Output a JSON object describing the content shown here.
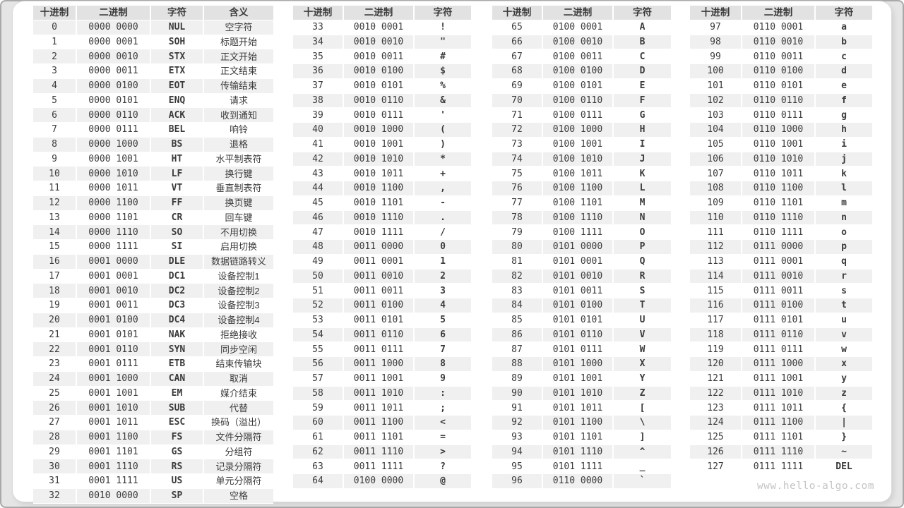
{
  "watermark": "www.hello-algo.com",
  "colors": {
    "page_bg": "#e5e5e5",
    "card_bg": "#ffffff",
    "header_bg": "#e2e2e2",
    "stripe_bg": "#f0f0f0",
    "text": "#3b3b3b",
    "watermark": "#c4c4c4"
  },
  "tables": [
    {
      "name": "ascii-control-characters",
      "headers": [
        "十进制",
        "二进制",
        "字符",
        "含义"
      ],
      "rows": [
        [
          "0",
          "0000 0000",
          "NUL",
          "空字符"
        ],
        [
          "1",
          "0000 0001",
          "SOH",
          "标题开始"
        ],
        [
          "2",
          "0000 0010",
          "STX",
          "正文开始"
        ],
        [
          "3",
          "0000 0011",
          "ETX",
          "正文结束"
        ],
        [
          "4",
          "0000 0100",
          "EOT",
          "传输结束"
        ],
        [
          "5",
          "0000 0101",
          "ENQ",
          "请求"
        ],
        [
          "6",
          "0000 0110",
          "ACK",
          "收到通知"
        ],
        [
          "7",
          "0000 0111",
          "BEL",
          "响铃"
        ],
        [
          "8",
          "0000 1000",
          "BS",
          "退格"
        ],
        [
          "9",
          "0000 1001",
          "HT",
          "水平制表符"
        ],
        [
          "10",
          "0000 1010",
          "LF",
          "换行键"
        ],
        [
          "11",
          "0000 1011",
          "VT",
          "垂直制表符"
        ],
        [
          "12",
          "0000 1100",
          "FF",
          "换页键"
        ],
        [
          "13",
          "0000 1101",
          "CR",
          "回车键"
        ],
        [
          "14",
          "0000 1110",
          "SO",
          "不用切换"
        ],
        [
          "15",
          "0000 1111",
          "SI",
          "启用切换"
        ],
        [
          "16",
          "0001 0000",
          "DLE",
          "数据链路转义"
        ],
        [
          "17",
          "0001 0001",
          "DC1",
          "设备控制1"
        ],
        [
          "18",
          "0001 0010",
          "DC2",
          "设备控制2"
        ],
        [
          "19",
          "0001 0011",
          "DC3",
          "设备控制3"
        ],
        [
          "20",
          "0001 0100",
          "DC4",
          "设备控制4"
        ],
        [
          "21",
          "0001 0101",
          "NAK",
          "拒绝接收"
        ],
        [
          "22",
          "0001 0110",
          "SYN",
          "同步空闲"
        ],
        [
          "23",
          "0001 0111",
          "ETB",
          "结束传输块"
        ],
        [
          "24",
          "0001 1000",
          "CAN",
          "取消"
        ],
        [
          "25",
          "0001 1001",
          "EM",
          "媒介结束"
        ],
        [
          "26",
          "0001 1010",
          "SUB",
          "代替"
        ],
        [
          "27",
          "0001 1011",
          "ESC",
          "换码（溢出）"
        ],
        [
          "28",
          "0001 1100",
          "FS",
          "文件分隔符"
        ],
        [
          "29",
          "0001 1101",
          "GS",
          "分组符"
        ],
        [
          "30",
          "0001 1110",
          "RS",
          "记录分隔符"
        ],
        [
          "31",
          "0001 1111",
          "US",
          "单元分隔符"
        ],
        [
          "32",
          "0010 0000",
          "SP",
          "空格"
        ]
      ]
    },
    {
      "name": "ascii-33-64",
      "headers": [
        "十进制",
        "二进制",
        "字符"
      ],
      "rows": [
        [
          "33",
          "0010 0001",
          "!"
        ],
        [
          "34",
          "0010 0010",
          "\""
        ],
        [
          "35",
          "0010 0011",
          "#"
        ],
        [
          "36",
          "0010 0100",
          "$"
        ],
        [
          "37",
          "0010 0101",
          "%"
        ],
        [
          "38",
          "0010 0110",
          "&"
        ],
        [
          "39",
          "0010 0111",
          "'"
        ],
        [
          "40",
          "0010 1000",
          "("
        ],
        [
          "41",
          "0010 1001",
          ")"
        ],
        [
          "42",
          "0010 1010",
          "*"
        ],
        [
          "43",
          "0010 1011",
          "+"
        ],
        [
          "44",
          "0010 1100",
          ","
        ],
        [
          "45",
          "0010 1101",
          "-"
        ],
        [
          "46",
          "0010 1110",
          "."
        ],
        [
          "47",
          "0010 1111",
          "/"
        ],
        [
          "48",
          "0011 0000",
          "0"
        ],
        [
          "49",
          "0011 0001",
          "1"
        ],
        [
          "50",
          "0011 0010",
          "2"
        ],
        [
          "51",
          "0011 0011",
          "3"
        ],
        [
          "52",
          "0011 0100",
          "4"
        ],
        [
          "53",
          "0011 0101",
          "5"
        ],
        [
          "54",
          "0011 0110",
          "6"
        ],
        [
          "55",
          "0011 0111",
          "7"
        ],
        [
          "56",
          "0011 1000",
          "8"
        ],
        [
          "57",
          "0011 1001",
          "9"
        ],
        [
          "58",
          "0011 1010",
          ":"
        ],
        [
          "59",
          "0011 1011",
          ";"
        ],
        [
          "60",
          "0011 1100",
          "<"
        ],
        [
          "61",
          "0011 1101",
          "="
        ],
        [
          "62",
          "0011 1110",
          ">"
        ],
        [
          "63",
          "0011 1111",
          "?"
        ],
        [
          "64",
          "0100 0000",
          "@"
        ]
      ]
    },
    {
      "name": "ascii-65-96",
      "headers": [
        "十进制",
        "二进制",
        "字符"
      ],
      "rows": [
        [
          "65",
          "0100 0001",
          "A"
        ],
        [
          "66",
          "0100 0010",
          "B"
        ],
        [
          "67",
          "0100 0011",
          "C"
        ],
        [
          "68",
          "0100 0100",
          "D"
        ],
        [
          "69",
          "0100 0101",
          "E"
        ],
        [
          "70",
          "0100 0110",
          "F"
        ],
        [
          "71",
          "0100 0111",
          "G"
        ],
        [
          "72",
          "0100 1000",
          "H"
        ],
        [
          "73",
          "0100 1001",
          "I"
        ],
        [
          "74",
          "0100 1010",
          "J"
        ],
        [
          "75",
          "0100 1011",
          "K"
        ],
        [
          "76",
          "0100 1100",
          "L"
        ],
        [
          "77",
          "0100 1101",
          "M"
        ],
        [
          "78",
          "0100 1110",
          "N"
        ],
        [
          "79",
          "0100 1111",
          "O"
        ],
        [
          "80",
          "0101 0000",
          "P"
        ],
        [
          "81",
          "0101 0001",
          "Q"
        ],
        [
          "82",
          "0101 0010",
          "R"
        ],
        [
          "83",
          "0101 0011",
          "S"
        ],
        [
          "84",
          "0101 0100",
          "T"
        ],
        [
          "85",
          "0101 0101",
          "U"
        ],
        [
          "86",
          "0101 0110",
          "V"
        ],
        [
          "87",
          "0101 0111",
          "W"
        ],
        [
          "88",
          "0101 1000",
          "X"
        ],
        [
          "89",
          "0101 1001",
          "Y"
        ],
        [
          "90",
          "0101 1010",
          "Z"
        ],
        [
          "91",
          "0101 1011",
          "["
        ],
        [
          "92",
          "0101 1100",
          "\\"
        ],
        [
          "93",
          "0101 1101",
          "]"
        ],
        [
          "94",
          "0101 1110",
          "^"
        ],
        [
          "95",
          "0101 1111",
          "_"
        ],
        [
          "96",
          "0110 0000",
          "`"
        ]
      ]
    },
    {
      "name": "ascii-97-127",
      "headers": [
        "十进制",
        "二进制",
        "字符"
      ],
      "rows": [
        [
          "97",
          "0110 0001",
          "a"
        ],
        [
          "98",
          "0110 0010",
          "b"
        ],
        [
          "99",
          "0110 0011",
          "c"
        ],
        [
          "100",
          "0110 0100",
          "d"
        ],
        [
          "101",
          "0110 0101",
          "e"
        ],
        [
          "102",
          "0110 0110",
          "f"
        ],
        [
          "103",
          "0110 0111",
          "g"
        ],
        [
          "104",
          "0110 1000",
          "h"
        ],
        [
          "105",
          "0110 1001",
          "i"
        ],
        [
          "106",
          "0110 1010",
          "j"
        ],
        [
          "107",
          "0110 1011",
          "k"
        ],
        [
          "108",
          "0110 1100",
          "l"
        ],
        [
          "109",
          "0110 1101",
          "m"
        ],
        [
          "110",
          "0110 1110",
          "n"
        ],
        [
          "111",
          "0110 1111",
          "o"
        ],
        [
          "112",
          "0111 0000",
          "p"
        ],
        [
          "113",
          "0111 0001",
          "q"
        ],
        [
          "114",
          "0111 0010",
          "r"
        ],
        [
          "115",
          "0111 0011",
          "s"
        ],
        [
          "116",
          "0111 0100",
          "t"
        ],
        [
          "117",
          "0111 0101",
          "u"
        ],
        [
          "118",
          "0111 0110",
          "v"
        ],
        [
          "119",
          "0111 0111",
          "w"
        ],
        [
          "120",
          "0111 1000",
          "x"
        ],
        [
          "121",
          "0111 1001",
          "y"
        ],
        [
          "122",
          "0111 1010",
          "z"
        ],
        [
          "123",
          "0111 1011",
          "{"
        ],
        [
          "124",
          "0111 1100",
          "|"
        ],
        [
          "125",
          "0111 1101",
          "}"
        ],
        [
          "126",
          "0111 1110",
          "~"
        ],
        [
          "127",
          "0111 1111",
          "DEL"
        ]
      ]
    }
  ]
}
